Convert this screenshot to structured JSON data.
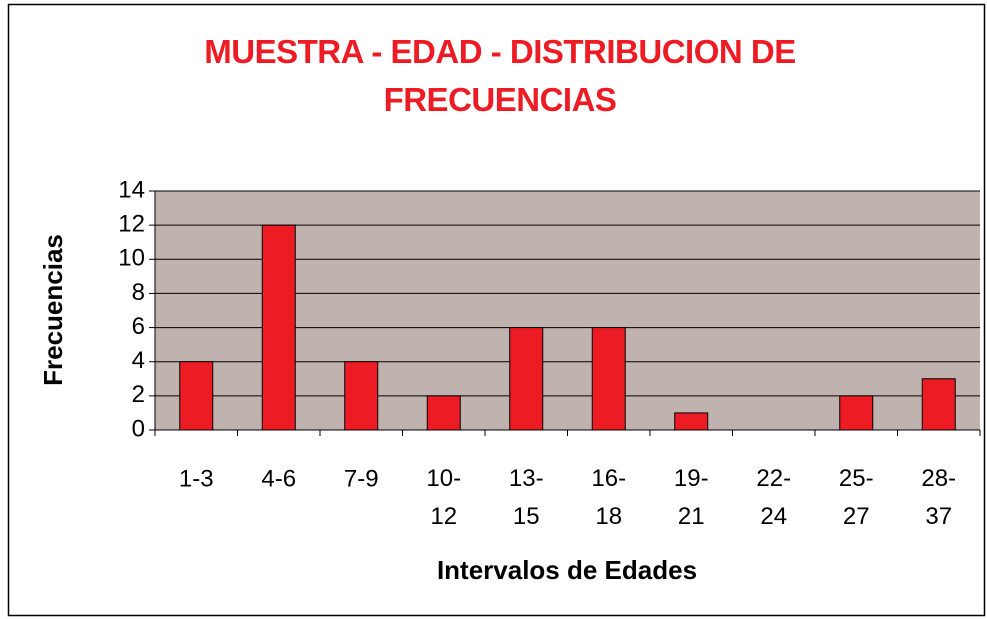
{
  "chart_data": {
    "type": "bar",
    "title": "MUESTRA - EDAD - DISTRIBUCION DE FRECUENCIAS",
    "x_label": "Intervalos de Edades",
    "y_label": "Frecuencias",
    "categories": [
      "1-3",
      "4-6",
      "7-9",
      "10-12",
      "13-15",
      "16-18",
      "19-21",
      "22-24",
      "25-27",
      "28-37"
    ],
    "values": [
      4,
      12,
      4,
      2,
      6,
      6,
      1,
      0,
      2,
      3
    ],
    "color": "#ed1c24",
    "ylim": [
      0,
      14
    ],
    "yticks": [
      0,
      2,
      4,
      6,
      8,
      10,
      12,
      14
    ],
    "grid": true
  }
}
